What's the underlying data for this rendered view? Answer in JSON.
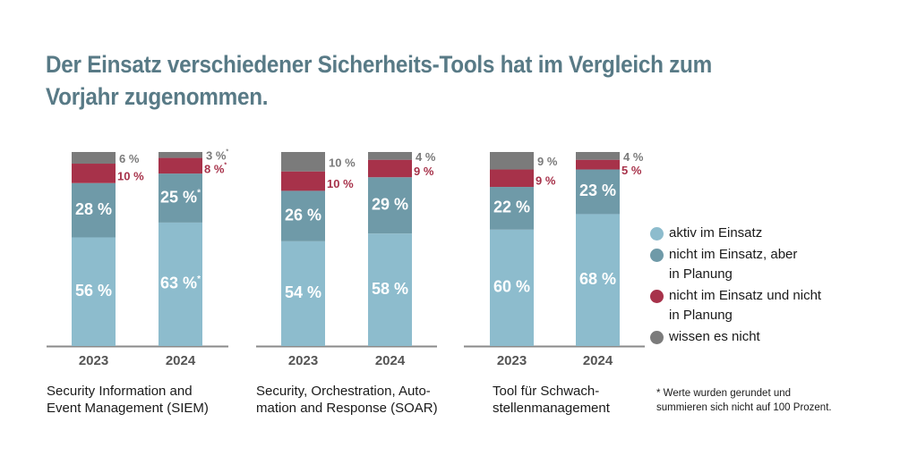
{
  "title": "Der Einsatz verschiedener Sicherheits-Tools hat im Vergleich zum Vorjahr zugenommen.",
  "chart_data": {
    "type": "bar",
    "stacked": true,
    "title": "Der Einsatz verschiedener Sicherheits-Tools hat im Vergleich zum Vorjahr zugenommen.",
    "unit": "%",
    "ylim": [
      0,
      100
    ],
    "legend_position": "right",
    "series_meta": [
      {
        "name": "aktiv im Einsatz",
        "color": "#8dbccd"
      },
      {
        "name": "nicht im Einsatz, aber\nin Planung",
        "color": "#6f9aa8"
      },
      {
        "name": "nicht im Einsatz und nicht\nin Planung",
        "color": "#a7324a"
      },
      {
        "name": "wissen es nicht",
        "color": "#7b7b7b"
      }
    ],
    "groups": [
      {
        "name": "Security Information and\nEvent Management (SIEM)",
        "bars": [
          {
            "year": "2023",
            "values": [
              56,
              28,
              10,
              6
            ],
            "labels": [
              "56 %",
              "28 %",
              "10 %",
              "6 %"
            ]
          },
          {
            "year": "2024",
            "values": [
              63,
              25,
              8,
              3
            ],
            "labels": [
              "63 %*",
              "25 %*",
              "8 %*",
              "3 %*"
            ]
          }
        ]
      },
      {
        "name": "Security, Orchestration, Auto-\nmation and Response (SOAR)",
        "bars": [
          {
            "year": "2023",
            "values": [
              54,
              26,
              10,
              10
            ],
            "labels": [
              "54 %",
              "26 %",
              "10 %",
              "10 %"
            ]
          },
          {
            "year": "2024",
            "values": [
              58,
              29,
              9,
              4
            ],
            "labels": [
              "58 %",
              "29 %",
              "9 %",
              "4 %"
            ]
          }
        ]
      },
      {
        "name": "Tool für Schwach-\nstellenmanagement",
        "bars": [
          {
            "year": "2023",
            "values": [
              60,
              22,
              9,
              9
            ],
            "labels": [
              "60 %",
              "22 %",
              "9 %",
              "9 %"
            ]
          },
          {
            "year": "2024",
            "values": [
              68,
              23,
              5,
              4
            ],
            "labels": [
              "68 %",
              "23 %",
              "5 %",
              "4 %"
            ]
          }
        ]
      }
    ],
    "footnote": "* Werte wurden gerundet und\n  summieren sich nicht auf 100 Prozent."
  },
  "legend": [
    {
      "label": "aktiv im Einsatz",
      "color": "#8dbccd"
    },
    {
      "label": "nicht im Einsatz, aber\nin Planung",
      "color": "#6f9aa8"
    },
    {
      "label": "nicht im Einsatz und nicht\nin Planung",
      "color": "#a7324a"
    },
    {
      "label": "wissen es nicht",
      "color": "#7b7b7b"
    }
  ],
  "categories": [
    "Security Information and\nEvent Management (SIEM)",
    "Security, Orchestration, Auto-\nmation and Response (SOAR)",
    "Tool für Schwach-\nstellenmanagement"
  ],
  "footnote": "* Werte wurden gerundet und\n  summieren sich nicht auf 100 Prozent.",
  "colors": {
    "title": "#587a86",
    "axis": "#8a8a8a",
    "year_label": "#555555",
    "outside_gray_label": "#7b7b7b",
    "outside_red_label": "#a7324a",
    "inside_label": "#ffffff"
  }
}
